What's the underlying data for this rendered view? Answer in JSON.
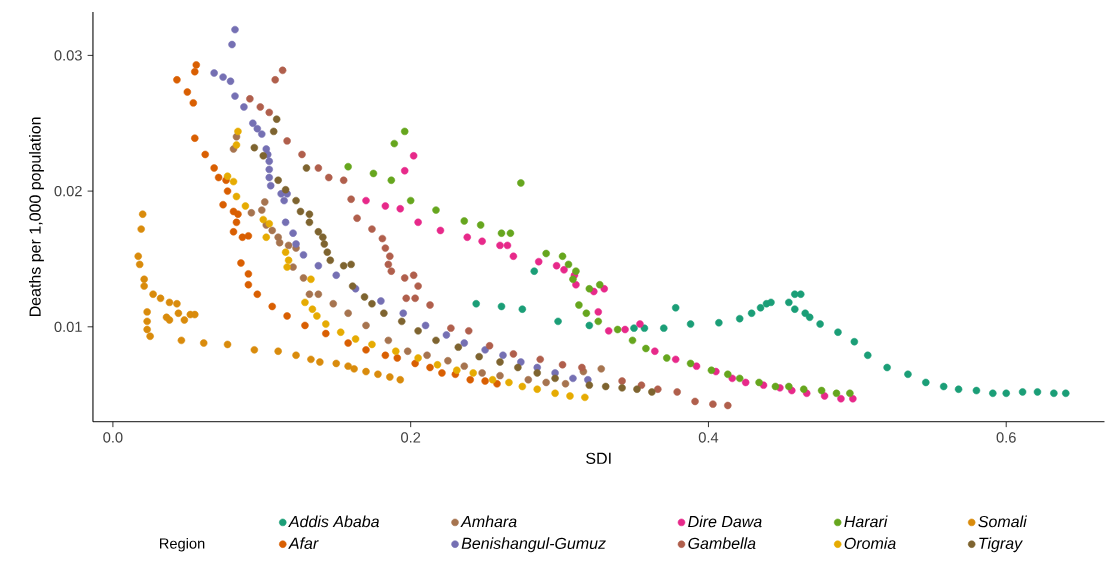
{
  "chart_data": {
    "type": "scatter",
    "xlabel": "SDI",
    "ylabel": "Deaths per 1,000 population",
    "legend_title": "Region",
    "legend": "bottom",
    "grid": false,
    "xlim": [
      -0.0134,
      0.666
    ],
    "ylim": [
      0.003,
      0.0332
    ],
    "xticks": [
      {
        "value": 0,
        "label": "0.0"
      },
      {
        "value": 0.2,
        "label": "0.2"
      },
      {
        "value": 0.4,
        "label": "0.4"
      },
      {
        "value": 0.6,
        "label": "0.6"
      }
    ],
    "yticks": [
      {
        "value": 0.01,
        "label": "0.01"
      },
      {
        "value": 0.02,
        "label": "0.02"
      },
      {
        "value": 0.03,
        "label": "0.03"
      }
    ],
    "series": [
      {
        "name": "Addis Ababa",
        "color": "#1b9e77",
        "x": [
          0.283,
          0.244,
          0.261,
          0.275,
          0.299,
          0.32,
          0.35,
          0.357,
          0.37,
          0.378,
          0.388,
          0.407,
          0.421,
          0.429,
          0.435,
          0.439,
          0.442,
          0.454,
          0.458,
          0.462,
          0.458,
          0.465,
          0.468,
          0.475,
          0.487,
          0.498,
          0.507,
          0.52,
          0.534,
          0.546,
          0.558,
          0.568,
          0.58,
          0.591,
          0.6,
          0.611,
          0.621,
          0.632,
          0.64
        ],
        "values": [
          0.0141,
          0.0117,
          0.0115,
          0.0113,
          0.0104,
          0.0101,
          0.0099,
          0.0099,
          0.0099,
          0.0114,
          0.0102,
          0.0103,
          0.0106,
          0.011,
          0.0114,
          0.0117,
          0.0118,
          0.0118,
          0.0124,
          0.0124,
          0.0113,
          0.011,
          0.0107,
          0.0102,
          0.0096,
          0.0089,
          0.0079,
          0.007,
          0.0065,
          0.0059,
          0.0056,
          0.0054,
          0.0053,
          0.0051,
          0.0051,
          0.0052,
          0.0052,
          0.0051,
          0.0051
        ]
      },
      {
        "name": "Afar",
        "color": "#d95f02",
        "x": [
          0.056,
          0.055,
          0.043,
          0.05,
          0.054,
          0.055,
          0.062,
          0.068,
          0.071,
          0.076,
          0.077,
          0.074,
          0.081,
          0.084,
          0.083,
          0.081,
          0.087,
          0.091,
          0.086,
          0.091,
          0.091,
          0.097,
          0.107,
          0.117,
          0.129,
          0.143,
          0.158,
          0.17,
          0.183,
          0.191,
          0.203,
          0.213,
          0.221,
          0.23,
          0.24,
          0.25,
          0.258
        ],
        "values": [
          0.0293,
          0.0288,
          0.0282,
          0.0273,
          0.0265,
          0.0239,
          0.0227,
          0.0217,
          0.021,
          0.0208,
          0.02,
          0.019,
          0.0185,
          0.0183,
          0.0177,
          0.017,
          0.0166,
          0.0167,
          0.0147,
          0.0139,
          0.0131,
          0.0124,
          0.0115,
          0.0108,
          0.0101,
          0.0095,
          0.0088,
          0.0083,
          0.0079,
          0.0077,
          0.0073,
          0.007,
          0.0066,
          0.0065,
          0.0061,
          0.006,
          0.0058
        ]
      },
      {
        "name": "Amhara",
        "color": "#a6744f",
        "x": [
          0.083,
          0.081,
          0.102,
          0.093,
          0.1,
          0.103,
          0.107,
          0.111,
          0.112,
          0.118,
          0.123,
          0.121,
          0.128,
          0.132,
          0.138,
          0.148,
          0.158,
          0.17,
          0.185,
          0.198,
          0.211,
          0.225,
          0.236,
          0.248,
          0.26,
          0.279,
          0.291,
          0.304,
          0.316,
          0.328
        ],
        "values": [
          0.024,
          0.0231,
          0.0192,
          0.0184,
          0.0186,
          0.0175,
          0.0171,
          0.0166,
          0.0162,
          0.016,
          0.0158,
          0.0144,
          0.0136,
          0.0124,
          0.0124,
          0.0117,
          0.011,
          0.0101,
          0.009,
          0.0082,
          0.0079,
          0.0075,
          0.0071,
          0.0066,
          0.0064,
          0.0061,
          0.0059,
          0.0058,
          0.0067,
          0.0069
        ]
      },
      {
        "name": "Benishangul-Gumuz",
        "color": "#7570b3",
        "x": [
          0.082,
          0.08,
          0.068,
          0.074,
          0.079,
          0.082,
          0.088,
          0.094,
          0.097,
          0.1,
          0.103,
          0.104,
          0.105,
          0.105,
          0.105,
          0.106,
          0.113,
          0.117,
          0.115,
          0.116,
          0.121,
          0.123,
          0.128,
          0.138,
          0.15,
          0.163,
          0.18,
          0.195,
          0.21,
          0.224,
          0.236,
          0.25,
          0.262,
          0.274,
          0.285,
          0.297,
          0.309,
          0.319
        ],
        "values": [
          0.0319,
          0.0308,
          0.0287,
          0.0284,
          0.0281,
          0.027,
          0.0262,
          0.025,
          0.0246,
          0.0242,
          0.0231,
          0.0227,
          0.0222,
          0.0216,
          0.021,
          0.0204,
          0.0198,
          0.0198,
          0.0193,
          0.0177,
          0.0169,
          0.0161,
          0.0153,
          0.0145,
          0.0138,
          0.0128,
          0.0119,
          0.011,
          0.0101,
          0.0094,
          0.0088,
          0.0083,
          0.0079,
          0.0074,
          0.007,
          0.0066,
          0.0062,
          0.0061
        ]
      },
      {
        "name": "Dire Dawa",
        "color": "#e7298a",
        "x": [
          0.202,
          0.196,
          0.17,
          0.183,
          0.193,
          0.205,
          0.22,
          0.238,
          0.248,
          0.26,
          0.265,
          0.269,
          0.286,
          0.298,
          0.303,
          0.31,
          0.311,
          0.323,
          0.33,
          0.326,
          0.333,
          0.344,
          0.354,
          0.364,
          0.378,
          0.392,
          0.405,
          0.416,
          0.425,
          0.437,
          0.448,
          0.456,
          0.466,
          0.478,
          0.489,
          0.497
        ],
        "values": [
          0.0226,
          0.0215,
          0.0193,
          0.0189,
          0.0187,
          0.0177,
          0.0171,
          0.0166,
          0.0163,
          0.016,
          0.016,
          0.0152,
          0.0148,
          0.0145,
          0.0142,
          0.0138,
          0.0131,
          0.0126,
          0.0128,
          0.0111,
          0.0097,
          0.0098,
          0.0102,
          0.0082,
          0.0076,
          0.0071,
          0.0067,
          0.0062,
          0.0059,
          0.0057,
          0.0055,
          0.0053,
          0.0051,
          0.0049,
          0.0047,
          0.0047
        ]
      },
      {
        "name": "Gambella",
        "color": "#b05f4c",
        "x": [
          0.114,
          0.109,
          0.092,
          0.099,
          0.105,
          0.117,
          0.127,
          0.138,
          0.145,
          0.155,
          0.16,
          0.164,
          0.174,
          0.181,
          0.183,
          0.186,
          0.185,
          0.187,
          0.196,
          0.202,
          0.205,
          0.197,
          0.203,
          0.213,
          0.227,
          0.239,
          0.253,
          0.269,
          0.287,
          0.302,
          0.315,
          0.342,
          0.355,
          0.366,
          0.379,
          0.391,
          0.403,
          0.413
        ],
        "values": [
          0.0289,
          0.0282,
          0.0268,
          0.0262,
          0.0258,
          0.0237,
          0.0227,
          0.0217,
          0.021,
          0.0208,
          0.0194,
          0.018,
          0.0172,
          0.0165,
          0.0158,
          0.0152,
          0.0146,
          0.0141,
          0.0136,
          0.0138,
          0.013,
          0.0121,
          0.0121,
          0.0116,
          0.0099,
          0.0097,
          0.0086,
          0.008,
          0.0076,
          0.0072,
          0.007,
          0.006,
          0.0057,
          0.0054,
          0.0052,
          0.0045,
          0.0043,
          0.0042
        ]
      },
      {
        "name": "Harari",
        "color": "#66a61e",
        "x": [
          0.196,
          0.189,
          0.158,
          0.175,
          0.187,
          0.2,
          0.217,
          0.236,
          0.247,
          0.261,
          0.267,
          0.274,
          0.291,
          0.302,
          0.306,
          0.311,
          0.309,
          0.313,
          0.318,
          0.32,
          0.327,
          0.326,
          0.339,
          0.349,
          0.358,
          0.372,
          0.388,
          0.402,
          0.413,
          0.421,
          0.434,
          0.445,
          0.454,
          0.464,
          0.476,
          0.486,
          0.495
        ],
        "values": [
          0.0244,
          0.0235,
          0.0218,
          0.0213,
          0.0208,
          0.0193,
          0.0186,
          0.0178,
          0.0175,
          0.0169,
          0.0169,
          0.0206,
          0.0154,
          0.0152,
          0.0146,
          0.0141,
          0.0135,
          0.0116,
          0.011,
          0.0128,
          0.0131,
          0.0104,
          0.0098,
          0.009,
          0.0084,
          0.0077,
          0.0073,
          0.0068,
          0.0065,
          0.0062,
          0.0059,
          0.0056,
          0.0056,
          0.0054,
          0.0053,
          0.0051,
          0.0051
        ]
      },
      {
        "name": "Oromia",
        "color": "#e6ab02",
        "x": [
          0.084,
          0.083,
          0.077,
          0.081,
          0.083,
          0.089,
          0.101,
          0.105,
          0.103,
          0.116,
          0.118,
          0.117,
          0.133,
          0.129,
          0.134,
          0.137,
          0.143,
          0.153,
          0.163,
          0.174,
          0.19,
          0.205,
          0.218,
          0.231,
          0.242,
          0.255,
          0.266,
          0.275,
          0.285,
          0.297,
          0.307,
          0.317
        ],
        "values": [
          0.0244,
          0.0234,
          0.0211,
          0.0207,
          0.0196,
          0.0189,
          0.0179,
          0.0176,
          0.0166,
          0.0155,
          0.0149,
          0.0144,
          0.0135,
          0.0118,
          0.0113,
          0.0108,
          0.0102,
          0.0096,
          0.0091,
          0.0087,
          0.0082,
          0.0077,
          0.0072,
          0.0068,
          0.0066,
          0.0061,
          0.0059,
          0.0056,
          0.0054,
          0.0051,
          0.0049,
          0.0048
        ]
      },
      {
        "name": "Somali",
        "color": "#d98b0c",
        "x": [
          0.02,
          0.019,
          0.017,
          0.018,
          0.021,
          0.021,
          0.027,
          0.032,
          0.038,
          0.043,
          0.023,
          0.023,
          0.023,
          0.025,
          0.036,
          0.038,
          0.044,
          0.048,
          0.052,
          0.055,
          0.046,
          0.061,
          0.077,
          0.095,
          0.111,
          0.123,
          0.133,
          0.139,
          0.15,
          0.158,
          0.162,
          0.17,
          0.178,
          0.186,
          0.193
        ],
        "values": [
          0.0183,
          0.0172,
          0.0152,
          0.0146,
          0.0135,
          0.013,
          0.0124,
          0.0121,
          0.0118,
          0.0117,
          0.0111,
          0.0104,
          0.0098,
          0.0093,
          0.0107,
          0.0105,
          0.011,
          0.0105,
          0.0109,
          0.0109,
          0.009,
          0.0088,
          0.0087,
          0.0083,
          0.0082,
          0.0079,
          0.0076,
          0.0074,
          0.0073,
          0.0071,
          0.0069,
          0.0067,
          0.0065,
          0.0063,
          0.0061
        ]
      },
      {
        "name": "Tigray",
        "color": "#7e6430",
        "x": [
          0.11,
          0.108,
          0.095,
          0.101,
          0.13,
          0.111,
          0.116,
          0.123,
          0.126,
          0.132,
          0.132,
          0.138,
          0.141,
          0.142,
          0.144,
          0.146,
          0.155,
          0.16,
          0.161,
          0.169,
          0.174,
          0.182,
          0.194,
          0.205,
          0.217,
          0.232,
          0.246,
          0.26,
          0.272,
          0.285,
          0.297,
          0.32,
          0.331,
          0.342,
          0.352,
          0.362
        ],
        "values": [
          0.0253,
          0.0244,
          0.0232,
          0.0226,
          0.0217,
          0.0208,
          0.0201,
          0.0193,
          0.0185,
          0.0183,
          0.0177,
          0.017,
          0.0166,
          0.0161,
          0.0155,
          0.0149,
          0.0145,
          0.0146,
          0.013,
          0.0122,
          0.0117,
          0.011,
          0.0104,
          0.0097,
          0.009,
          0.0085,
          0.0078,
          0.0074,
          0.007,
          0.0066,
          0.0062,
          0.0057,
          0.0056,
          0.0055,
          0.0054,
          0.0052
        ]
      }
    ]
  }
}
